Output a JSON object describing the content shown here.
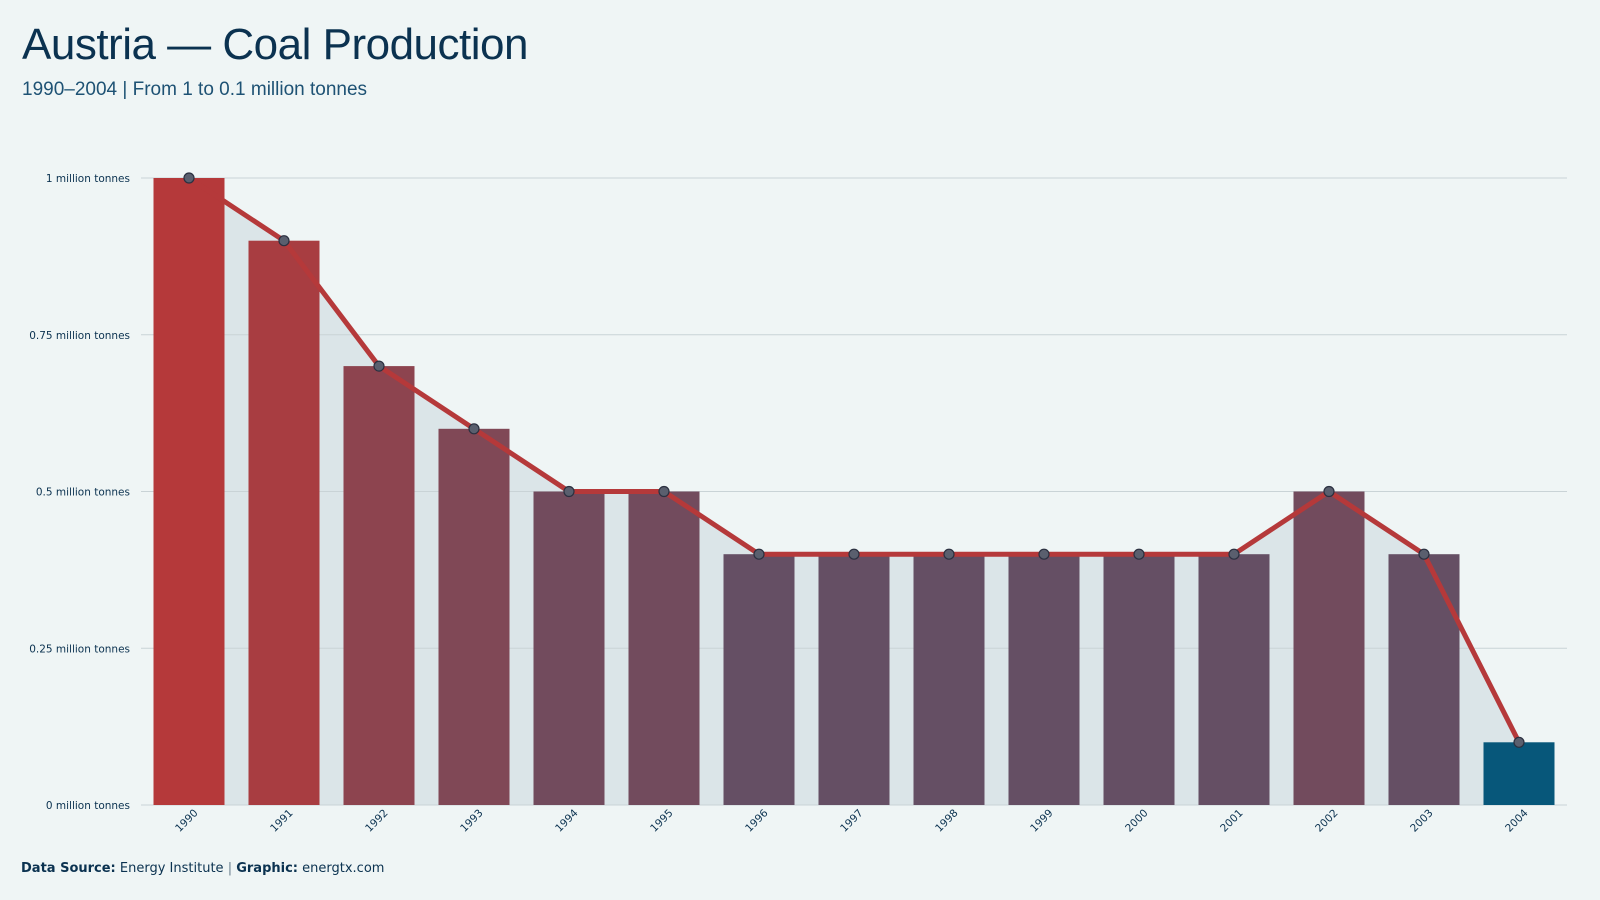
{
  "header": {
    "title": "Austria — Coal Production",
    "subtitle": "1990–2004 | From 1 to 0.1 million tonnes"
  },
  "footer": {
    "source_label": "Data Source:",
    "source_value": "Energy Institute",
    "separator": "|",
    "graphic_label": "Graphic:",
    "graphic_value": "energtx.com"
  },
  "colors": {
    "background": "#eff5f5",
    "band": "#dbe5e8",
    "line": "#b5393a",
    "high": "#b5393a",
    "mid": "#654f64",
    "low": "#07577a",
    "marker": "#5a5f6e"
  },
  "chart_data": {
    "type": "bar",
    "categories": [
      "1990",
      "1991",
      "1992",
      "1993",
      "1994",
      "1995",
      "1996",
      "1997",
      "1998",
      "1999",
      "2000",
      "2001",
      "2002",
      "2003",
      "2004"
    ],
    "series": [
      {
        "values": [
          1,
          0.9,
          0.7,
          0.6,
          0.5,
          0.5,
          0.4,
          0.4,
          0.4,
          0.4,
          0.4,
          0.4,
          0.5,
          0.4,
          0.1
        ]
      }
    ],
    "overlay": "line-with-markers",
    "area_under_line": true,
    "yticks": [
      {
        "value": 0,
        "label": "0 million tonnes"
      },
      {
        "value": 0.25,
        "label": "0.25 million tonnes"
      },
      {
        "value": 0.5,
        "label": "0.5 million tonnes"
      },
      {
        "value": 0.75,
        "label": "0.75 million tonnes"
      },
      {
        "value": 1,
        "label": "1 million tonnes"
      }
    ],
    "ylim": [
      0,
      1
    ],
    "grid": true,
    "legend": "none"
  }
}
